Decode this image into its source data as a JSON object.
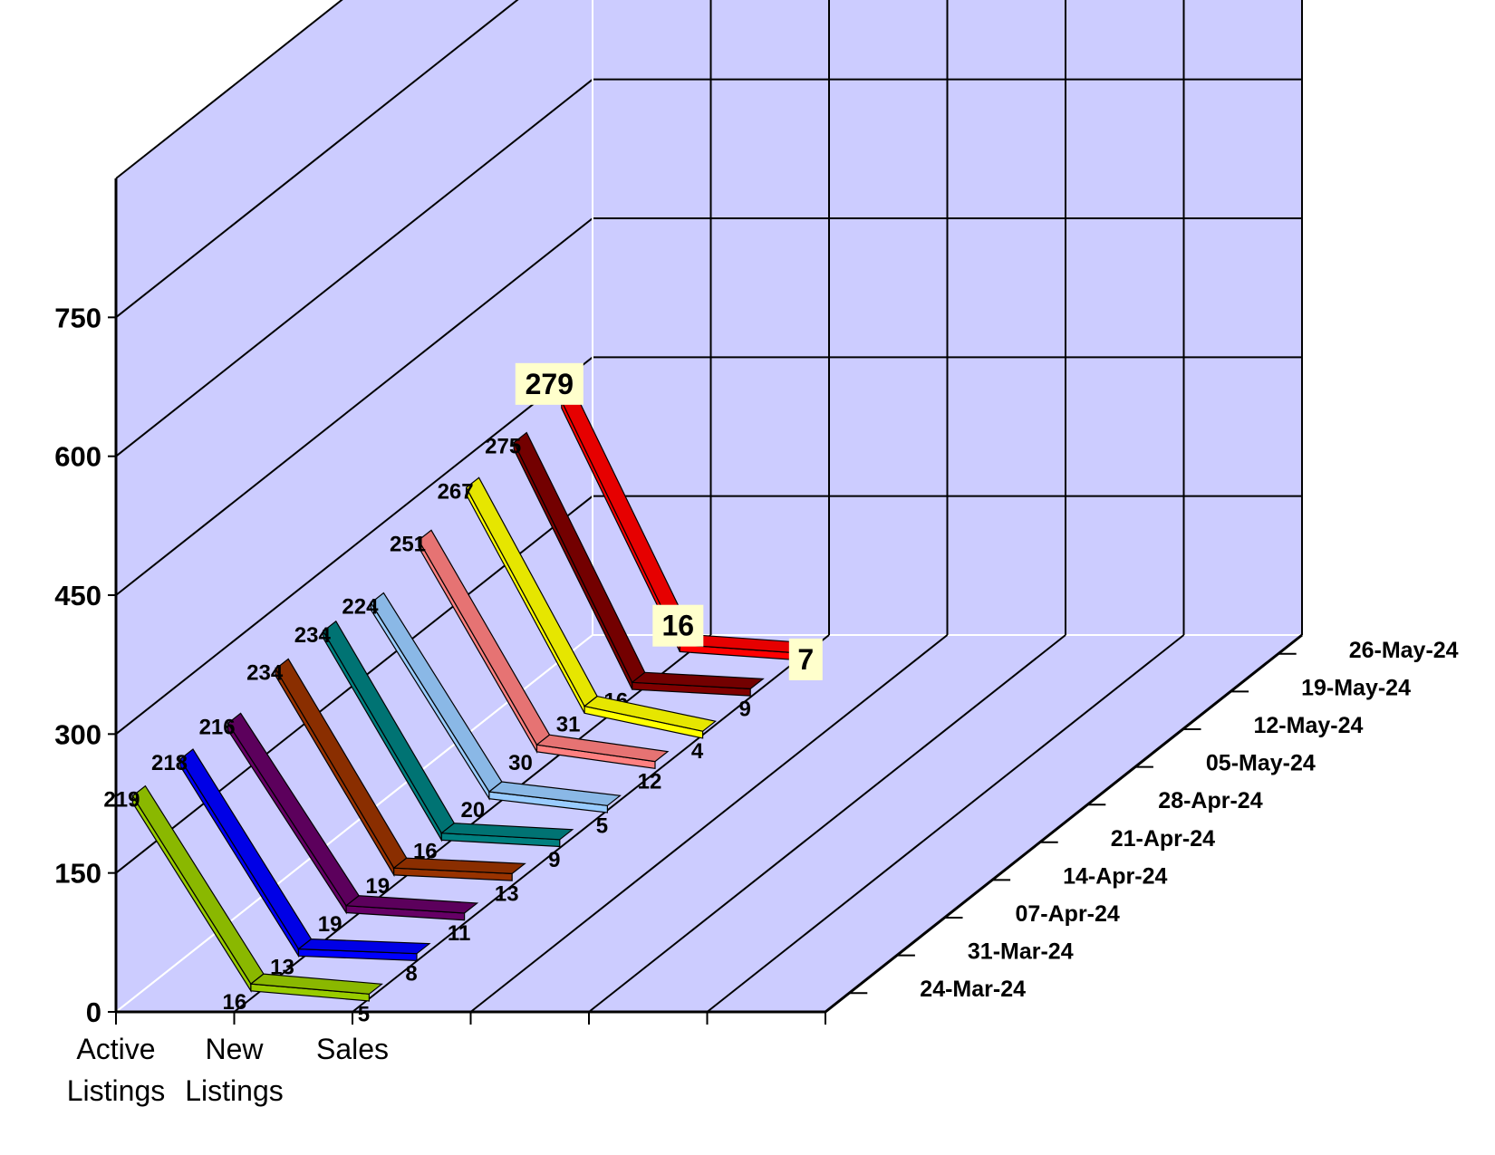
{
  "chart_data": {
    "type": "line",
    "categories": [
      "Active Listings",
      "New Listings",
      "Sales"
    ],
    "categories_display": [
      [
        "Active",
        "Listings"
      ],
      [
        "New",
        "Listings"
      ],
      [
        "Sales"
      ]
    ],
    "ylim": [
      0,
      900
    ],
    "yticks": [
      0,
      150,
      300,
      450,
      600,
      750
    ],
    "grid": true,
    "wall_color": "#CCCCFF",
    "highlighted_series": "26-May-24",
    "series": [
      {
        "name": "24-Mar-24",
        "values": [
          219,
          16,
          5
        ],
        "color": "#99CC00"
      },
      {
        "name": "31-Mar-24",
        "values": [
          218,
          13,
          8
        ],
        "color": "#0000FF"
      },
      {
        "name": "07-Apr-24",
        "values": [
          216,
          19,
          11
        ],
        "color": "#660066"
      },
      {
        "name": "14-Apr-24",
        "values": [
          234,
          19,
          13
        ],
        "color": "#993300"
      },
      {
        "name": "21-Apr-24",
        "values": [
          234,
          16,
          9
        ],
        "color": "#008080"
      },
      {
        "name": "28-Apr-24",
        "values": [
          224,
          20,
          5
        ],
        "color": "#99CCFF"
      },
      {
        "name": "05-May-24",
        "values": [
          251,
          30,
          12
        ],
        "color": "#FF8080"
      },
      {
        "name": "12-May-24",
        "values": [
          267,
          31,
          4
        ],
        "color": "#FFFF00"
      },
      {
        "name": "19-May-24",
        "values": [
          275,
          16,
          9
        ],
        "color": "#800000"
      },
      {
        "name": "26-May-24",
        "values": [
          279,
          16,
          7
        ],
        "color": "#FF0000"
      }
    ]
  }
}
